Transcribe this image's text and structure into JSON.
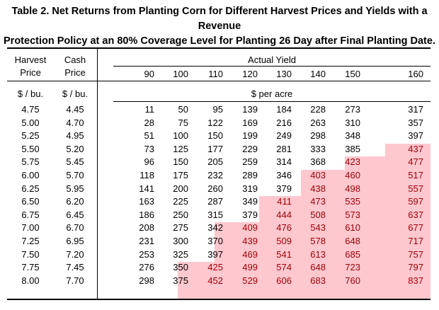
{
  "title_line1": "Table 2. Net Returns from Planting Corn for Different Harvest Prices and Yields with a Revenue",
  "title_line2": "Protection Policy at an 80% Coverage Level for Planting 26 Day after Final Planting Date.",
  "headers": {
    "harvest_top": "Harvest",
    "harvest_bottom": "Price",
    "cash_top": "Cash",
    "cash_bottom": "Price",
    "actual_yield": "Actual Yield",
    "yields": [
      "90",
      "100",
      "110",
      "120",
      "130",
      "140",
      "150",
      "160"
    ],
    "harvest_unit": "$ / bu.",
    "cash_unit": "$ / bu.",
    "returns_unit": "$ per acre"
  },
  "rows": [
    {
      "harvest": "4.75",
      "cash": "4.45",
      "values": [
        "11",
        "50",
        "95",
        "139",
        "184",
        "228",
        "273",
        "317"
      ],
      "highlight_from": 8
    },
    {
      "harvest": "5.00",
      "cash": "4.70",
      "values": [
        "28",
        "75",
        "122",
        "169",
        "216",
        "263",
        "310",
        "357"
      ],
      "highlight_from": 8
    },
    {
      "harvest": "5.25",
      "cash": "4.95",
      "values": [
        "51",
        "100",
        "150",
        "199",
        "249",
        "298",
        "348",
        "397"
      ],
      "highlight_from": 8
    },
    {
      "harvest": "5.50",
      "cash": "5.20",
      "values": [
        "73",
        "125",
        "177",
        "229",
        "281",
        "333",
        "385",
        "437"
      ],
      "highlight_from": 7
    },
    {
      "harvest": "5.75",
      "cash": "5.45",
      "values": [
        "96",
        "150",
        "205",
        "259",
        "314",
        "368",
        "423",
        "477"
      ],
      "highlight_from": 6
    },
    {
      "harvest": "6.00",
      "cash": "5.70",
      "values": [
        "118",
        "175",
        "232",
        "289",
        "346",
        "403",
        "460",
        "517"
      ],
      "highlight_from": 5
    },
    {
      "harvest": "6.25",
      "cash": "5.95",
      "values": [
        "141",
        "200",
        "260",
        "319",
        "379",
        "438",
        "498",
        "557"
      ],
      "highlight_from": 5
    },
    {
      "harvest": "6.50",
      "cash": "6.20",
      "values": [
        "163",
        "225",
        "287",
        "349",
        "411",
        "473",
        "535",
        "597"
      ],
      "highlight_from": 4
    },
    {
      "harvest": "6.75",
      "cash": "6.45",
      "values": [
        "186",
        "250",
        "315",
        "379",
        "444",
        "508",
        "573",
        "637"
      ],
      "highlight_from": 4
    },
    {
      "harvest": "7.00",
      "cash": "6.70",
      "values": [
        "208",
        "275",
        "342",
        "409",
        "476",
        "543",
        "610",
        "677"
      ],
      "highlight_from": 3
    },
    {
      "harvest": "7.25",
      "cash": "6.95",
      "values": [
        "231",
        "300",
        "370",
        "439",
        "509",
        "578",
        "648",
        "717"
      ],
      "highlight_from": 3
    },
    {
      "harvest": "7.50",
      "cash": "7.20",
      "values": [
        "253",
        "325",
        "397",
        "469",
        "541",
        "613",
        "685",
        "757"
      ],
      "highlight_from": 3
    },
    {
      "harvest": "7.75",
      "cash": "7.45",
      "values": [
        "276",
        "350",
        "425",
        "499",
        "574",
        "648",
        "723",
        "797"
      ],
      "highlight_from": 2
    },
    {
      "harvest": "8.00",
      "cash": "7.70",
      "values": [
        "298",
        "375",
        "452",
        "529",
        "606",
        "683",
        "760",
        "837"
      ],
      "highlight_from": 2
    }
  ]
}
